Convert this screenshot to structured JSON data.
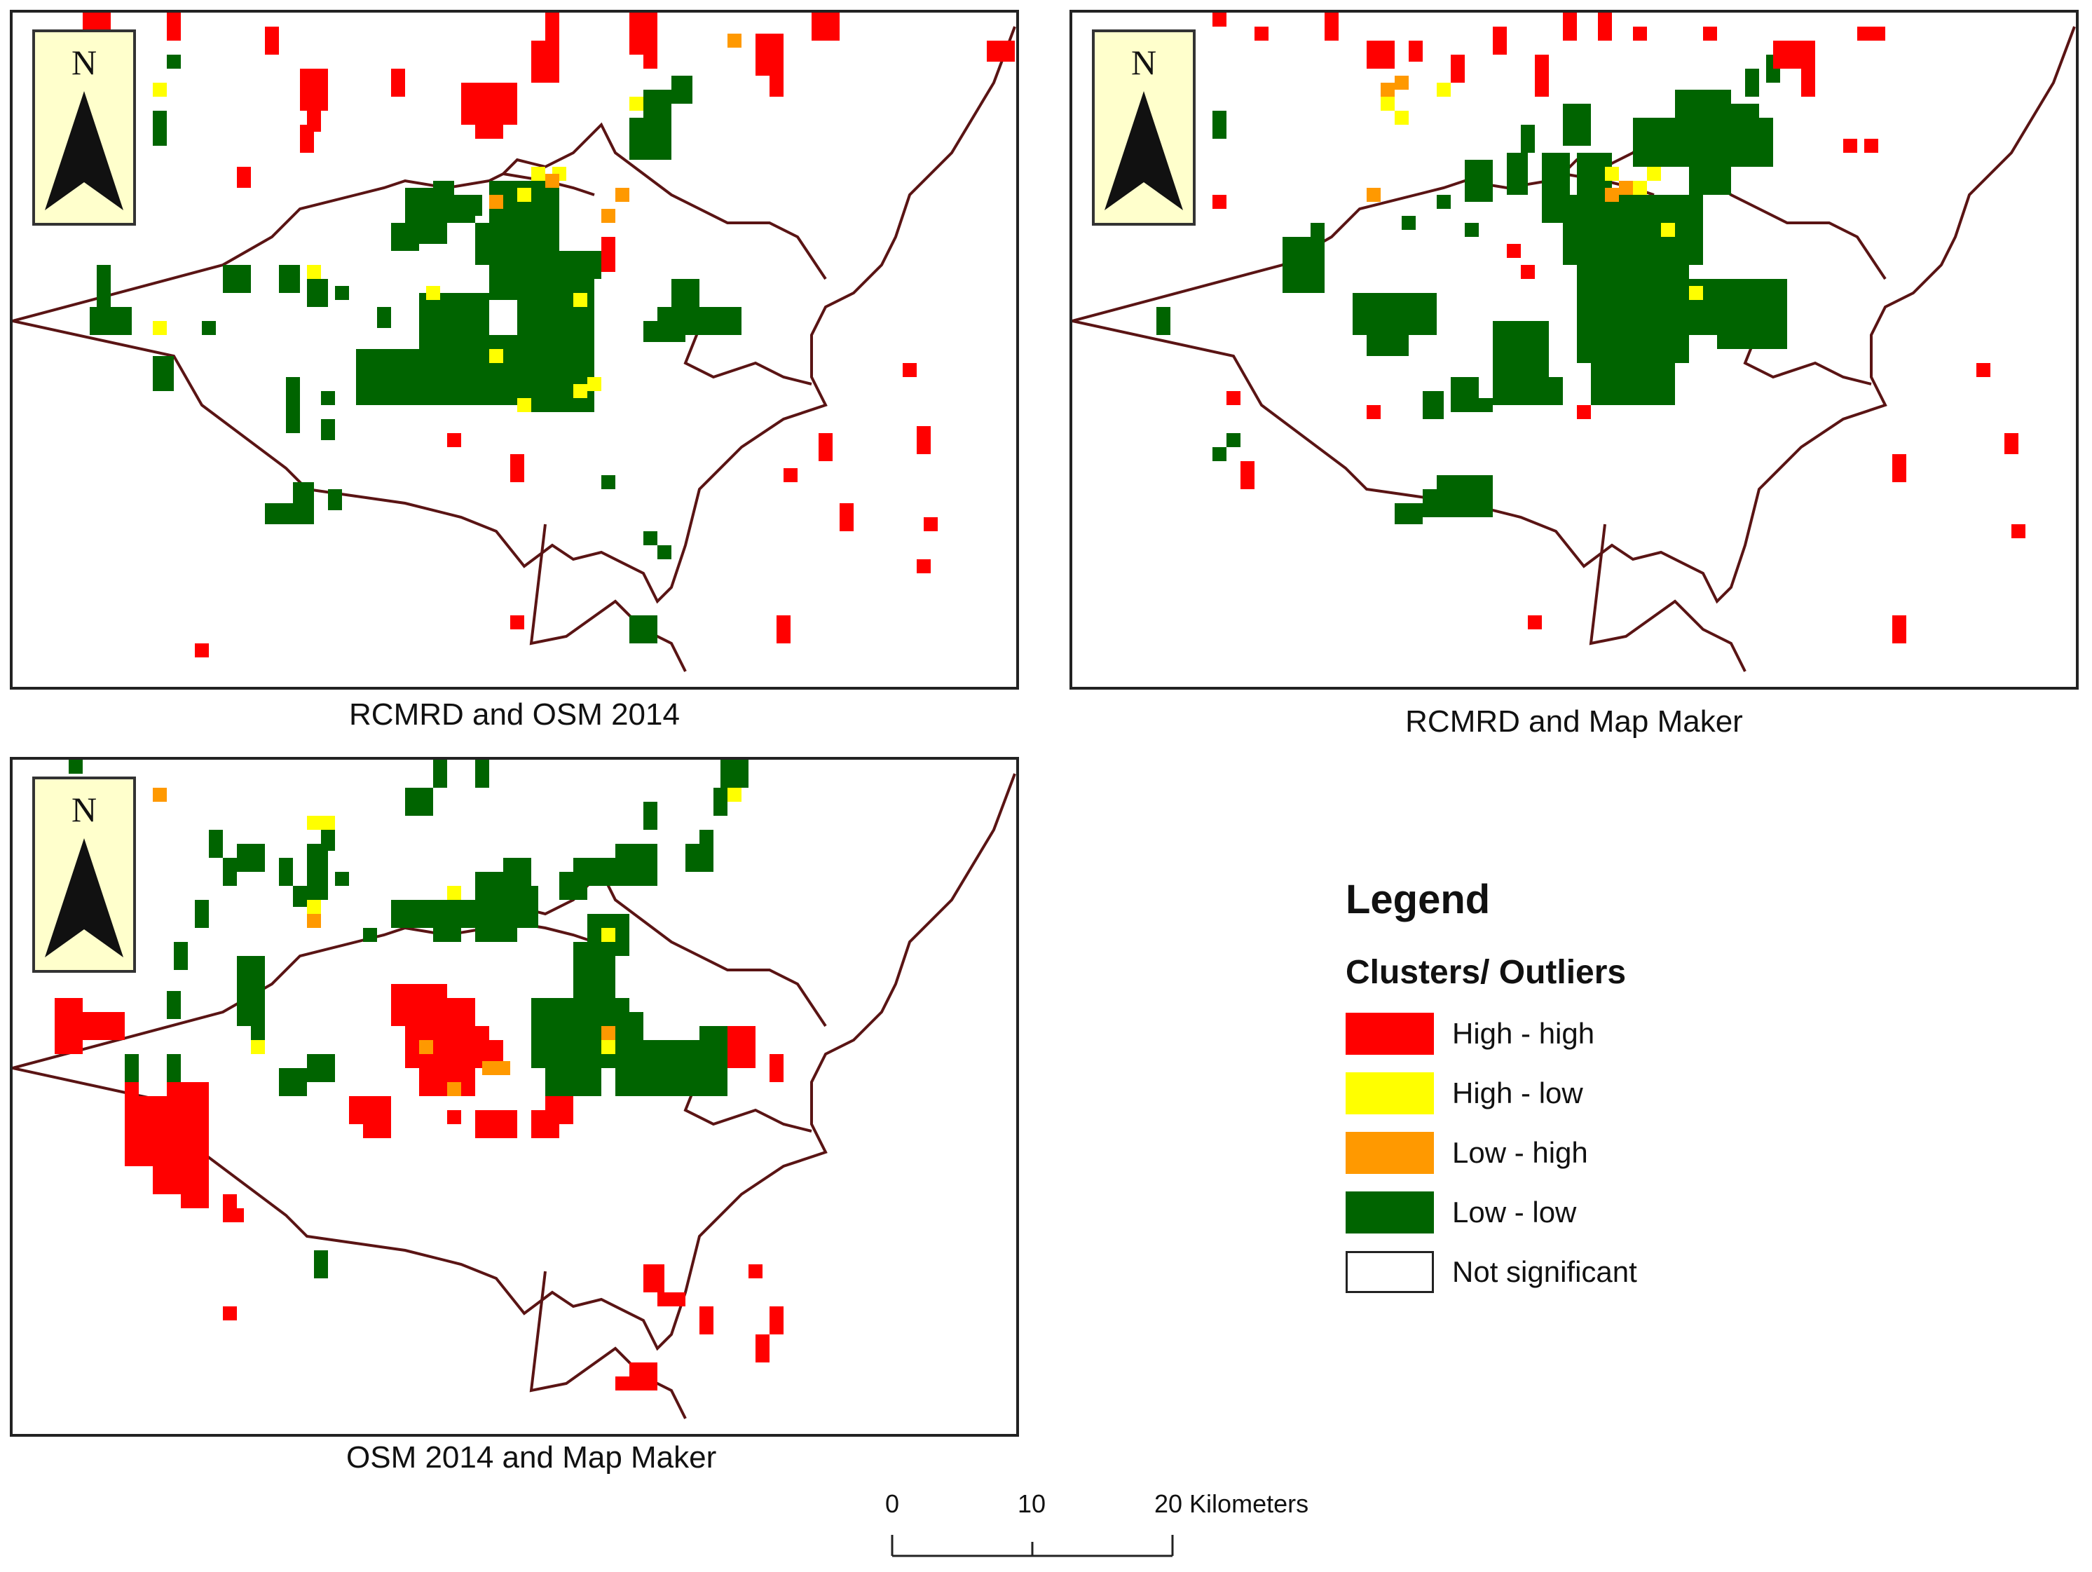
{
  "figure": {
    "panels": [
      {
        "caption": "RCMRD and OSM 2014"
      },
      {
        "caption": "RCMRD and Map Maker"
      },
      {
        "caption": "OSM 2014 and Map Maker"
      }
    ],
    "north_arrow_label": "N",
    "legend": {
      "title": "Legend",
      "subtitle": "Clusters/ Outliers",
      "items": [
        {
          "label": "High - high",
          "color": "#ff0000"
        },
        {
          "label": "High - low",
          "color": "#ffff00"
        },
        {
          "label": "Low - high",
          "color": "#ff9900"
        },
        {
          "label": "Low - low",
          "color": "#006400"
        },
        {
          "label": "Not significant",
          "color": "#ffffff"
        }
      ]
    },
    "scale_bar": {
      "labels": [
        "0",
        "10",
        "20 Kilometers"
      ]
    },
    "colors": {
      "boundary": "#5a1414",
      "frame": "#222222",
      "north_arrow_bg": "#ffffcc"
    }
  }
}
